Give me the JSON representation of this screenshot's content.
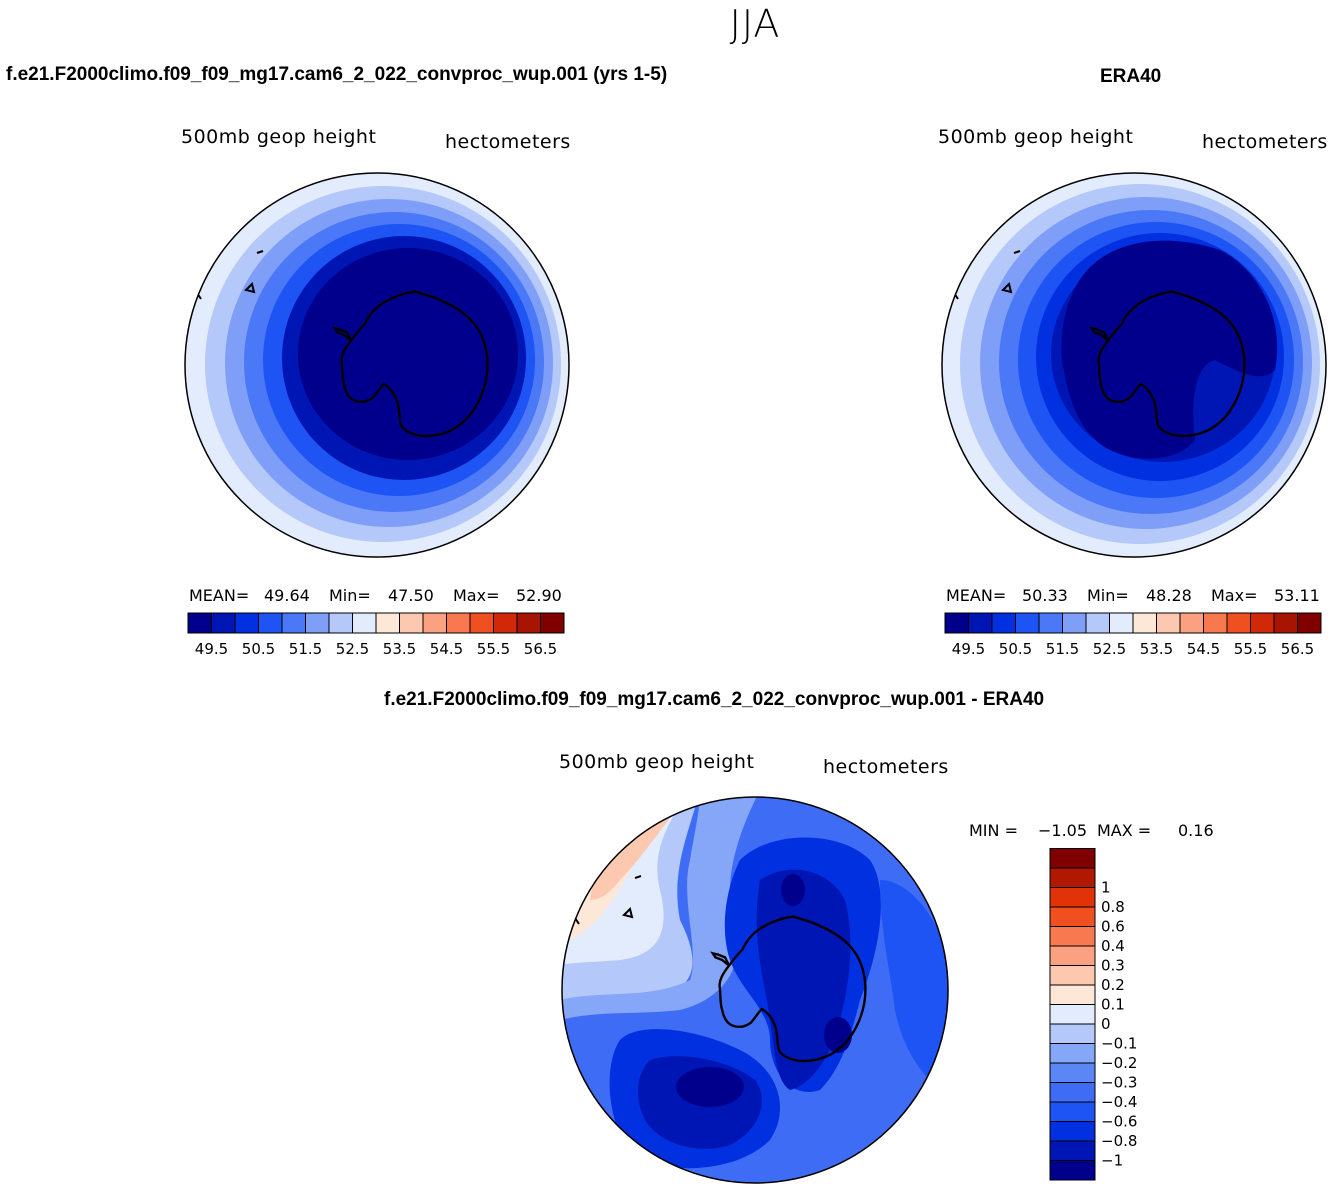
{
  "season": "JJA",
  "panels": [
    {
      "case": "f.e21.F2000climo.f09_f09_mg17.cam6_2_022_convproc_wup.001 (yrs 1-5)",
      "variable": "500mb  geop  height",
      "units": "hectometers",
      "stats": {
        "mean_label": "MEAN=",
        "mean": "49.64",
        "min_label": "Min=",
        "min": "47.50",
        "max_label": "Max=",
        "max": "52.90"
      }
    },
    {
      "case": "ERA40",
      "variable": "500mb  geop  height",
      "units": "hectometers",
      "stats": {
        "mean_label": "MEAN=",
        "mean": "50.33",
        "min_label": "Min=",
        "min": "48.28",
        "max_label": "Max=",
        "max": "53.11"
      }
    },
    {
      "case": "f.e21.F2000climo.f09_f09_mg17.cam6_2_022_convproc_wup.001 - ERA40",
      "variable": "500mb  geop  height",
      "units": "hectometers",
      "stats": {
        "min_label": "MIN =",
        "min": "−1.05",
        "max_label": "MAX =",
        "max": "0.16"
      }
    }
  ],
  "colorbar_main": {
    "colors": [
      "#00008c",
      "#0016b4",
      "#0030e0",
      "#1e54f4",
      "#4a78f6",
      "#7e9ef8",
      "#b4c8fa",
      "#e2ecfc",
      "#fde8d8",
      "#fcc8b0",
      "#fba080",
      "#f87850",
      "#f05020",
      "#d02808",
      "#a81402",
      "#800000"
    ],
    "tick_labels": [
      "49.5",
      "50.5",
      "51.5",
      "52.5",
      "53.5",
      "54.5",
      "55.5",
      "56.5"
    ]
  },
  "colorbar_diff": {
    "colors_bottom_to_top": [
      "#00008c",
      "#0016b4",
      "#0030e0",
      "#1e54f4",
      "#3e6cf5",
      "#5a86f6",
      "#86a6f8",
      "#b4c8fa",
      "#e2ecfc",
      "#fde8d8",
      "#fcc8b0",
      "#fba080",
      "#f87850",
      "#f05020",
      "#e03408",
      "#b01802",
      "#800000"
    ],
    "tick_labels_bottom_to_top": [
      "−1",
      "−0.8",
      "−0.6",
      "−0.4",
      "−0.3",
      "−0.2",
      "−0.1",
      "0",
      "0.1",
      "0.2",
      "0.3",
      "0.4",
      "0.6",
      "0.8",
      "1"
    ]
  },
  "colors": {
    "deepest_blue": "#00008c",
    "blue_2": "#0016b4",
    "blue_3": "#0030e0",
    "blue_4": "#1e54f4",
    "blue_5": "#4a78f6",
    "blue_6": "#7e9ef8",
    "blue_7": "#b4c8fa",
    "lightest_blue": "#e2ecfc",
    "peach": "#fde8d8",
    "salmon": "#fcc8b0",
    "coastline": "#000000"
  }
}
